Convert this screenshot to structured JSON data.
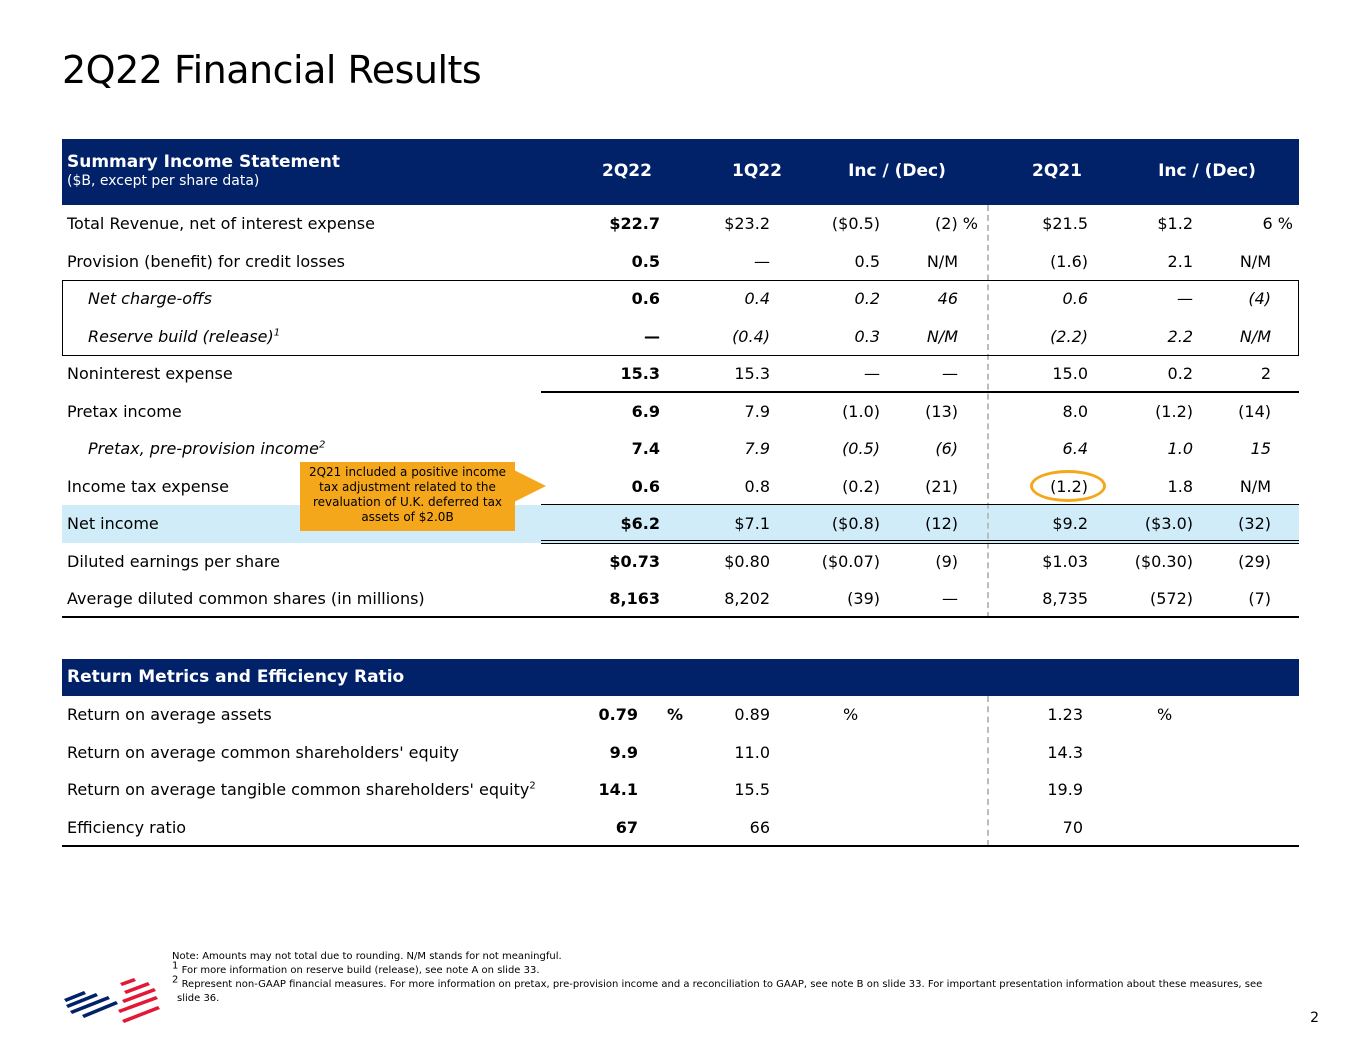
{
  "title": "2Q22 Financial Results",
  "income": {
    "header": {
      "title": "Summary Income Statement",
      "subtitle": "($B, except per share data)",
      "col_2q22": "2Q22",
      "col_1q22": "1Q22",
      "col_inc1": "Inc / (Dec)",
      "col_2q21": "2Q21",
      "col_inc2": "Inc / (Dec)"
    },
    "rows": [
      {
        "label": "Total Revenue, net of interest expense",
        "sup": "",
        "v2q22": "$22.7",
        "v1q22": "$23.2",
        "d1": "($0.5)",
        "p1": "(2) %",
        "v2q21": "$21.5",
        "d2": "$1.2",
        "p2": "6  %"
      },
      {
        "label": "Provision (benefit) for credit losses",
        "sup": "",
        "v2q22": "0.5",
        "v1q22": "—",
        "d1": "0.5",
        "p1": "N/M",
        "v2q21": "(1.6)",
        "d2": "2.1",
        "p2": "N/M"
      },
      {
        "label": "Net charge-offs",
        "sup": "",
        "v2q22": "0.6",
        "v1q22": "0.4",
        "d1": "0.2",
        "p1": "46",
        "v2q21": "0.6",
        "d2": "—",
        "p2": "(4)"
      },
      {
        "label": "Reserve build (release)",
        "sup": "1",
        "v2q22": "—",
        "v1q22": "(0.4)",
        "d1": "0.3",
        "p1": "N/M",
        "v2q21": "(2.2)",
        "d2": "2.2",
        "p2": "N/M"
      },
      {
        "label": "Noninterest expense",
        "sup": "",
        "v2q22": "15.3",
        "v1q22": "15.3",
        "d1": "—",
        "p1": "—",
        "v2q21": "15.0",
        "d2": "0.2",
        "p2": "2"
      },
      {
        "label": "Pretax income",
        "sup": "",
        "v2q22": "6.9",
        "v1q22": "7.9",
        "d1": "(1.0)",
        "p1": "(13)",
        "v2q21": "8.0",
        "d2": "(1.2)",
        "p2": "(14)"
      },
      {
        "label": "Pretax, pre-provision income",
        "sup": "2",
        "v2q22": "7.4",
        "v1q22": "7.9",
        "d1": "(0.5)",
        "p1": "(6)",
        "v2q21": "6.4",
        "d2": "1.0",
        "p2": "15"
      },
      {
        "label": "Income tax expense",
        "sup": "",
        "v2q22": "0.6",
        "v1q22": "0.8",
        "d1": "(0.2)",
        "p1": "(21)",
        "v2q21": "(1.2)",
        "d2": "1.8",
        "p2": "N/M"
      },
      {
        "label": "Net income",
        "sup": "",
        "v2q22": "$6.2",
        "v1q22": "$7.1",
        "d1": "($0.8)",
        "p1": "(12)",
        "v2q21": "$9.2",
        "d2": "($3.0)",
        "p2": "(32)"
      },
      {
        "label": "Diluted earnings per share",
        "sup": "",
        "v2q22": "$0.73",
        "v1q22": "$0.80",
        "d1": "($0.07)",
        "p1": "(9)",
        "v2q21": "$1.03",
        "d2": "($0.30)",
        "p2": "(29)"
      },
      {
        "label": "Average diluted common shares (in millions)",
        "sup": "",
        "v2q22": "8,163",
        "v1q22": "8,202",
        "d1": "(39)",
        "p1": "—",
        "v2q21": "8,735",
        "d2": "(572)",
        "p2": "(7)"
      }
    ]
  },
  "returns": {
    "header": {
      "title": "Return Metrics and Efficiency Ratio"
    },
    "pct": "%",
    "rows": [
      {
        "label": "Return on average assets",
        "sup": "",
        "v2q22": "0.79",
        "v1q22": "0.89",
        "v2q21": "1.23"
      },
      {
        "label": "Return on average common shareholders' equity",
        "sup": "",
        "v2q22": "9.9",
        "v1q22": "11.0",
        "v2q21": "14.3"
      },
      {
        "label": "Return on average tangible common shareholders' equity",
        "sup": "2",
        "v2q22": "14.1",
        "v1q22": "15.5",
        "v2q21": "19.9"
      },
      {
        "label": "Efficiency ratio",
        "sup": "",
        "v2q22": "67",
        "v1q22": "66",
        "v2q21": "70"
      }
    ]
  },
  "callout": "2Q21 included a positive income tax adjustment related to the revaluation of U.K. deferred tax assets of $2.0B",
  "notes": {
    "main": "Note: Amounts may not total due to rounding. N/M stands for not meaningful.",
    "n1_mark": "1",
    "n1": "For more information on reserve build (release), see note A on slide 33.",
    "n2_mark": "2",
    "n2a": "Represent non-GAAP financial measures. For more information on pretax, pre-provision income and a reconciliation to GAAP, see note B on slide 33. For important presentation information about these measures, see",
    "n2b": "slide 36."
  },
  "page_number": "2",
  "colors": {
    "header_bg": "#012169",
    "highlight": "#d0ecf8",
    "callout": "#f5a71b",
    "logo_red": "#e31837",
    "logo_blue": "#012169"
  }
}
